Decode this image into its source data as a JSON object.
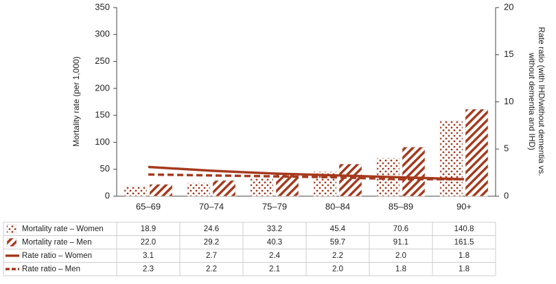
{
  "chart_data": {
    "type": "bar",
    "categories": [
      "65–69",
      "70–74",
      "75–79",
      "80–84",
      "85–89",
      "90+"
    ],
    "ylabel": "Mortality rate (per 1,000)",
    "y2label": [
      "Rate ratio (with IHD/without dementia vs.",
      "without dementia and IHD)"
    ],
    "ylim": [
      0,
      350
    ],
    "yticks": [
      0,
      50,
      100,
      150,
      200,
      250,
      300,
      350
    ],
    "y2lim": [
      0,
      20
    ],
    "y2ticks": [
      0,
      5,
      10,
      15,
      20
    ],
    "series": [
      {
        "name": "Mortality rate – Women",
        "type": "bar",
        "pattern": "dots",
        "color": "#a63a1e",
        "values": [
          18.9,
          24.6,
          33.2,
          45.4,
          70.6,
          140.8
        ],
        "value_labels": [
          "18.9",
          "24.6",
          "33.2",
          "45.4",
          "70.6",
          "140.8"
        ]
      },
      {
        "name": "Mortality rate – Men",
        "type": "bar",
        "pattern": "hatch",
        "color": "#a63a1e",
        "values": [
          22.0,
          29.2,
          40.3,
          59.7,
          91.1,
          161.5
        ],
        "value_labels": [
          "22.0",
          "29.2",
          "40.3",
          "59.7",
          "91.1",
          "161.5"
        ]
      },
      {
        "name": "Rate ratio – Women",
        "type": "line",
        "axis": "y2",
        "style": "solid",
        "color": "#a63a1e",
        "values": [
          3.1,
          2.7,
          2.4,
          2.2,
          2.0,
          1.8
        ],
        "value_labels": [
          "3.1",
          "2.7",
          "2.4",
          "2.2",
          "2.0",
          "1.8"
        ]
      },
      {
        "name": "Rate ratio – Men",
        "type": "line",
        "axis": "y2",
        "style": "dashed",
        "color": "#a63a1e",
        "values": [
          2.3,
          2.2,
          2.1,
          2.0,
          1.8,
          1.8
        ],
        "value_labels": [
          "2.3",
          "2.2",
          "2.1",
          "2.0",
          "1.8",
          "1.8"
        ]
      }
    ]
  }
}
